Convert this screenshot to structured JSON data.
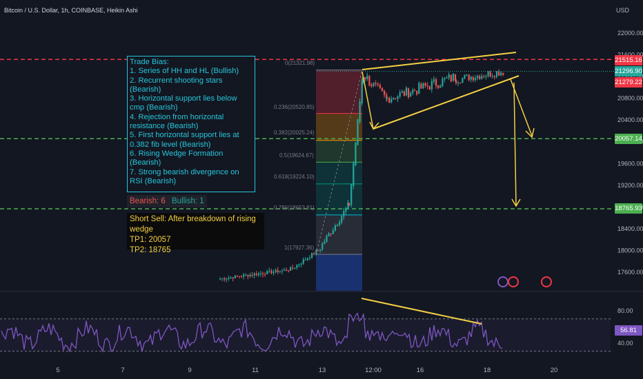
{
  "header": {
    "title": "Bitcoin / U.S. Dollar, 1h, COINBASE, Heikin Ashi",
    "currency": "USD"
  },
  "trade_bias": {
    "lines": [
      "Trade Bias:",
      "1. Series of HH and HL (Bullish)",
      "2. Recurrent shooting stars (Bearish)",
      "3. Horizontal support lies below cmp (Bearish)",
      "4. Rejection from horizontal resistance (Bearish)",
      "5. First horizontal support lies at 0.382 fib level (Bearish)",
      "6. Rising Wedge Formation (Bearish)",
      "7. Strong bearish divergence on RSI (Bearish)"
    ]
  },
  "score": {
    "bearish": "Bearish: 6",
    "bullish": "Bullish: 1"
  },
  "short_sell": {
    "lines": [
      "Short Sell: After breakdown of rising wedge",
      "TP1: 20057",
      "TP2: 18765"
    ]
  },
  "price_tags": [
    {
      "label": "21515.16",
      "color": "#f23645"
    },
    {
      "label": "21296.90",
      "color": "#26a69a"
    },
    {
      "label": "21279.22",
      "color": "#f23645"
    },
    {
      "label": "20057.14",
      "color": "#4caf50"
    },
    {
      "label": "18765.93",
      "color": "#4caf50"
    }
  ],
  "rsi_tag": {
    "label": "56.81",
    "color": "#7e57c2"
  },
  "fib_labels": [
    "0(21321.98)",
    "0.236(20520.85)",
    "0.382(20025.24)",
    "0.5(19624.67)",
    "0.618(19224.10)",
    "0.786(18653.81)",
    "1(17927.36)"
  ],
  "colors": {
    "background": "#131722",
    "up": "#26a69a",
    "down": "#ef5350",
    "resistance": "#f23645",
    "support": "#4caf50",
    "wedge": "#f5d042",
    "rsi": "#7e57c2"
  },
  "chart_data": {
    "type": "candlestick",
    "price_axis": {
      "ticks": [
        22000,
        21600,
        21200,
        20800,
        20400,
        20000,
        19600,
        19200,
        18800,
        18400,
        18000,
        17600
      ],
      "labels": [
        "22000.00",
        "21600.00",
        "21200.00",
        "20800.00",
        "20400.00",
        "20000.00",
        "19600.00",
        "19200.00",
        "18800.00",
        "18400.00",
        "18000.00",
        "17600.00"
      ]
    },
    "rsi_axis": {
      "ticks": [
        80,
        40
      ],
      "labels": [
        "80.00",
        "40.00"
      ]
    },
    "x_axis": {
      "labels": [
        "5",
        "7",
        "9",
        "11",
        "13",
        "12:00",
        "16",
        "18",
        "20"
      ]
    },
    "levels": [
      {
        "name": "horizontal-resistance",
        "price": 21515.16
      },
      {
        "name": "tp1-support",
        "price": 20057.14
      },
      {
        "name": "tp2-support",
        "price": 18765.93
      }
    ],
    "fibonacci": [
      {
        "ratio": 0,
        "price": 21321.98
      },
      {
        "ratio": 0.236,
        "price": 20520.85
      },
      {
        "ratio": 0.382,
        "price": 20025.24
      },
      {
        "ratio": 0.5,
        "price": 19624.67
      },
      {
        "ratio": 0.618,
        "price": 19224.1
      },
      {
        "ratio": 0.786,
        "price": 18653.81
      },
      {
        "ratio": 1,
        "price": 17927.36
      }
    ],
    "last_price": 21296.9,
    "rsi_last": 56.81
  }
}
